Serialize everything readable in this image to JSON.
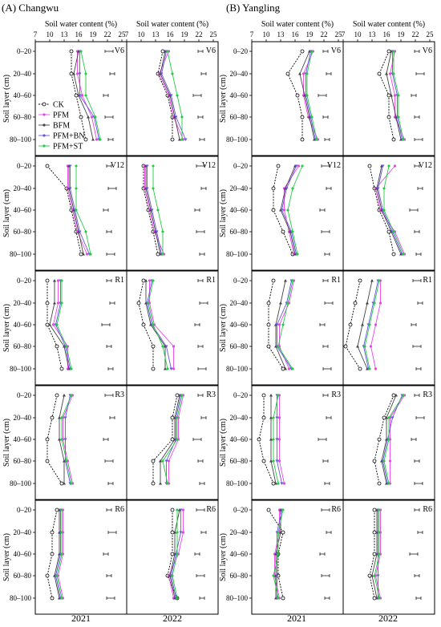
{
  "chart_data": {
    "type": "line",
    "sections": [
      "(A) Changwu",
      "(B) Yangling"
    ],
    "years": [
      "2021",
      "2022"
    ],
    "stages": [
      "V6",
      "V12",
      "R1",
      "R3",
      "R6"
    ],
    "xlabel": "Soil water content (%)",
    "ylabel": "Soil layer (cm)",
    "xticks": [
      "7",
      "10",
      "13",
      "16",
      "19",
      "22",
      "25"
    ],
    "xlim": [
      7,
      26
    ],
    "yticks": [
      "0–20",
      "20–40",
      "40–60",
      "60–80",
      "80–100"
    ],
    "series_names": [
      "CK",
      "PFM",
      "BFM",
      "PFM+BN",
      "PFM+ST"
    ],
    "colors": {
      "CK": "#000000",
      "PFM": "#ee44ee",
      "BFM": "#444444",
      "PFM+BN": "#6655dd",
      "PFM+ST": "#22cc44"
    },
    "panels": [
      {
        "site": "Changwu",
        "year": "2021",
        "stage": "V6",
        "values": {
          "CK": [
            15,
            15,
            16,
            17,
            18
          ],
          "PFM": [
            16,
            16,
            17,
            19,
            20
          ],
          "BFM": [
            16,
            15,
            16,
            18,
            19
          ],
          "PFM+BN": [
            16,
            16,
            16,
            19,
            20
          ],
          "PFM+ST": [
            16,
            17,
            17,
            19,
            20
          ]
        }
      },
      {
        "site": "Changwu",
        "year": "2022",
        "stage": "V6",
        "values": {
          "CK": [
            15,
            14,
            16,
            17,
            17
          ],
          "PFM": [
            16,
            14,
            16,
            17,
            19
          ],
          "BFM": [
            15,
            14,
            16,
            17,
            18
          ],
          "PFM+BN": [
            15,
            14,
            16,
            17,
            19
          ],
          "PFM+ST": [
            15,
            16,
            17,
            18,
            18
          ]
        }
      },
      {
        "site": "Changwu",
        "year": "2021",
        "stage": "V12",
        "values": {
          "CK": [
            10,
            14,
            15,
            16,
            17
          ],
          "PFM": [
            14,
            14,
            15,
            16,
            18
          ],
          "BFM": [
            14,
            14,
            15,
            16,
            17
          ],
          "PFM+BN": [
            14,
            14,
            15,
            16,
            18
          ],
          "PFM+ST": [
            15,
            15,
            15,
            17,
            18
          ]
        }
      },
      {
        "site": "Changwu",
        "year": "2022",
        "stage": "V12",
        "values": {
          "CK": [
            11,
            11,
            12,
            13,
            14
          ],
          "PFM": [
            11,
            11,
            12,
            13,
            15
          ],
          "BFM": [
            11,
            11,
            12,
            13,
            14
          ],
          "PFM+BN": [
            11,
            11,
            12,
            13,
            14
          ],
          "PFM+ST": [
            12,
            12,
            13,
            14,
            14
          ]
        }
      },
      {
        "site": "Changwu",
        "year": "2021",
        "stage": "R1",
        "values": {
          "CK": [
            10,
            10,
            10,
            12,
            13
          ],
          "PFM": [
            12,
            12,
            11,
            14,
            14
          ],
          "BFM": [
            11,
            11,
            10,
            13,
            14
          ],
          "PFM+BN": [
            12,
            12,
            11,
            13,
            14
          ],
          "PFM+ST": [
            12,
            12,
            11,
            13,
            14
          ]
        }
      },
      {
        "site": "Changwu",
        "year": "2022",
        "stage": "R1",
        "values": {
          "CK": [
            11,
            10,
            11,
            13,
            13
          ],
          "PFM": [
            12,
            12,
            13,
            17,
            17
          ],
          "BFM": [
            11,
            11,
            12,
            15,
            15
          ],
          "PFM+BN": [
            12,
            11,
            12,
            15,
            16
          ],
          "PFM+ST": [
            12,
            11,
            12,
            14,
            15
          ]
        }
      },
      {
        "site": "Changwu",
        "year": "2021",
        "stage": "R3",
        "values": {
          "CK": [
            12,
            11,
            10,
            10,
            13
          ],
          "PFM": [
            15,
            13,
            13,
            14,
            15
          ],
          "BFM": [
            13,
            12,
            12,
            13,
            13
          ],
          "PFM+BN": [
            14,
            13,
            13,
            13,
            14
          ],
          "PFM+ST": [
            14,
            12,
            12,
            13,
            14
          ]
        }
      },
      {
        "site": "Changwu",
        "year": "2022",
        "stage": "R3",
        "values": {
          "CK": [
            18,
            17,
            17,
            13,
            13
          ],
          "PFM": [
            19,
            18,
            18,
            16,
            16
          ],
          "BFM": [
            18,
            17,
            17,
            14,
            14
          ],
          "PFM+BN": [
            18,
            17,
            17,
            15,
            15
          ],
          "PFM+ST": [
            18,
            17,
            17,
            14,
            15
          ]
        }
      },
      {
        "site": "Changwu",
        "year": "2021",
        "stage": "R6",
        "values": {
          "CK": [
            12,
            11,
            11,
            10,
            11
          ],
          "PFM": [
            13,
            13,
            13,
            12,
            13
          ],
          "BFM": [
            12,
            12,
            12,
            11,
            12
          ],
          "PFM+BN": [
            12,
            12,
            12,
            11,
            12
          ],
          "PFM+ST": [
            12,
            12,
            12,
            11,
            12
          ]
        }
      },
      {
        "site": "Changwu",
        "year": "2022",
        "stage": "R6",
        "values": {
          "CK": [
            17,
            17,
            17,
            16,
            18
          ],
          "PFM": [
            19,
            19,
            18,
            16,
            17
          ],
          "BFM": [
            18,
            17,
            17,
            16,
            17
          ],
          "PFM+BN": [
            18,
            18,
            17,
            16,
            17
          ],
          "PFM+ST": [
            17,
            17,
            17,
            16,
            17
          ]
        }
      },
      {
        "site": "Yangling",
        "year": "2021",
        "stage": "V6",
        "values": {
          "CK": [
            18,
            15,
            17,
            18,
            18
          ],
          "PFM": [
            20,
            18,
            18,
            19,
            21
          ],
          "BFM": [
            19,
            17,
            18,
            19,
            20
          ],
          "PFM+BN": [
            19,
            18,
            18,
            19,
            20
          ],
          "PFM+ST": [
            19,
            18,
            18,
            19,
            20
          ]
        }
      },
      {
        "site": "Yangling",
        "year": "2022",
        "stage": "V6",
        "values": {
          "CK": [
            17,
            15,
            17,
            17,
            18
          ],
          "PFM": [
            18,
            17,
            18,
            18,
            20
          ],
          "BFM": [
            17,
            16,
            17,
            18,
            19
          ],
          "PFM+BN": [
            17,
            17,
            18,
            18,
            19
          ],
          "PFM+ST": [
            17,
            17,
            18,
            18,
            19
          ]
        }
      },
      {
        "site": "Yangling",
        "year": "2021",
        "stage": "V12",
        "values": {
          "CK": [
            13,
            12,
            12,
            14,
            16
          ],
          "PFM": [
            17,
            14,
            14,
            15,
            16
          ],
          "BFM": [
            16,
            14,
            13,
            15,
            16
          ],
          "PFM+BN": [
            16,
            14,
            13,
            15,
            16
          ],
          "PFM+ST": [
            17,
            15,
            14,
            15,
            16
          ]
        }
      },
      {
        "site": "Yangling",
        "year": "2022",
        "stage": "V12",
        "values": {
          "CK": [
            13,
            14,
            15,
            17,
            18
          ],
          "PFM": [
            18,
            14,
            15,
            18,
            20
          ],
          "BFM": [
            15,
            14,
            15,
            17,
            19
          ],
          "PFM+BN": [
            15,
            14,
            15,
            17,
            19
          ],
          "PFM+ST": [
            16,
            15,
            15,
            17,
            19
          ]
        }
      },
      {
        "site": "Yangling",
        "year": "2021",
        "stage": "R1",
        "values": {
          "CK": [
            12,
            11,
            11,
            11,
            14
          ],
          "PFM": [
            16,
            15,
            13,
            13,
            15
          ],
          "BFM": [
            14,
            13,
            12,
            12,
            14
          ],
          "PFM+BN": [
            15,
            14,
            12,
            12,
            15
          ],
          "PFM+ST": [
            15,
            14,
            13,
            12,
            15
          ]
        }
      },
      {
        "site": "Yangling",
        "year": "2022",
        "stage": "R1",
        "values": {
          "CK": [
            11,
            10,
            9,
            8,
            11
          ],
          "PFM": [
            15,
            15,
            14,
            13,
            14
          ],
          "BFM": [
            13,
            12,
            11,
            10,
            12
          ],
          "PFM+BN": [
            14,
            13,
            12,
            11,
            12
          ],
          "PFM+ST": [
            14,
            13,
            12,
            11,
            12
          ]
        }
      },
      {
        "site": "Yangling",
        "year": "2021",
        "stage": "R3",
        "values": {
          "CK": [
            10,
            10,
            9,
            10,
            12
          ],
          "PFM": [
            13,
            13,
            13,
            13,
            14
          ],
          "BFM": [
            11,
            11,
            11,
            11,
            12
          ],
          "PFM+BN": [
            12,
            12,
            12,
            12,
            13
          ],
          "PFM+ST": [
            12,
            11,
            11,
            11,
            12
          ]
        }
      },
      {
        "site": "Yangling",
        "year": "2022",
        "stage": "R3",
        "values": {
          "CK": [
            18,
            16,
            15,
            14,
            15
          ],
          "PFM": [
            20,
            17,
            17,
            17,
            17
          ],
          "BFM": [
            18,
            16,
            16,
            15,
            16
          ],
          "PFM+BN": [
            19,
            17,
            16,
            15,
            16
          ],
          "PFM+ST": [
            19,
            16,
            16,
            15,
            16
          ]
        }
      },
      {
        "site": "Yangling",
        "year": "2021",
        "stage": "R6",
        "values": {
          "CK": [
            11,
            14,
            13,
            13,
            14
          ],
          "PFM": [
            13,
            13,
            12,
            12,
            13
          ],
          "BFM": [
            13,
            13,
            12,
            12,
            12
          ],
          "PFM+BN": [
            13,
            12,
            12,
            12,
            12
          ],
          "PFM+ST": [
            13,
            12,
            12,
            11,
            12
          ]
        }
      },
      {
        "site": "Yangling",
        "year": "2022",
        "stage": "R6",
        "values": {
          "CK": [
            14,
            14,
            14,
            13,
            14
          ],
          "PFM": [
            15,
            15,
            15,
            14,
            15
          ],
          "BFM": [
            14,
            14,
            14,
            13,
            14
          ],
          "PFM+BN": [
            14,
            14,
            14,
            14,
            14
          ],
          "PFM+ST": [
            14,
            14,
            14,
            13,
            14
          ]
        }
      }
    ]
  }
}
